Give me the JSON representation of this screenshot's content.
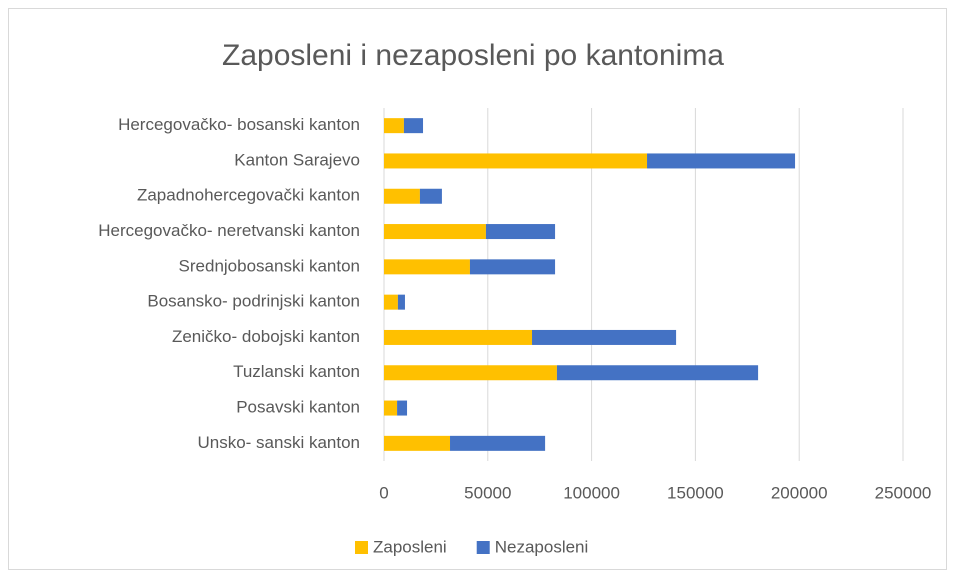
{
  "chart_data": {
    "type": "stacked_barh",
    "title": "Zaposleni i nezaposleni po kantonima",
    "categories": [
      "Hercegovačko- bosanski kanton",
      "Kanton Sarajevo",
      "Zapadnohercegovački kanton",
      "Hercegovačko- neretvanski kanton",
      "Srednjobosanski kanton",
      "Bosansko- podrinjski kanton",
      "Zeničko- dobojski kanton",
      "Tuzlanski kanton",
      "Posavski kanton",
      "Unsko- sanski kanton"
    ],
    "series": [
      {
        "name": "Zaposleni",
        "color": "#ffc000",
        "values": [
          9600,
          126700,
          17300,
          49100,
          41400,
          6700,
          71300,
          83300,
          6300,
          31800
        ]
      },
      {
        "name": "Nezaposleni",
        "color": "#4472c4",
        "values": [
          9200,
          71300,
          10600,
          33300,
          41000,
          3400,
          69400,
          96900,
          4800,
          45800
        ]
      }
    ],
    "xlim": [
      0,
      250000
    ],
    "xticks": [
      0,
      50000,
      100000,
      150000,
      200000,
      250000
    ],
    "grid": true,
    "legend": "bottom"
  }
}
